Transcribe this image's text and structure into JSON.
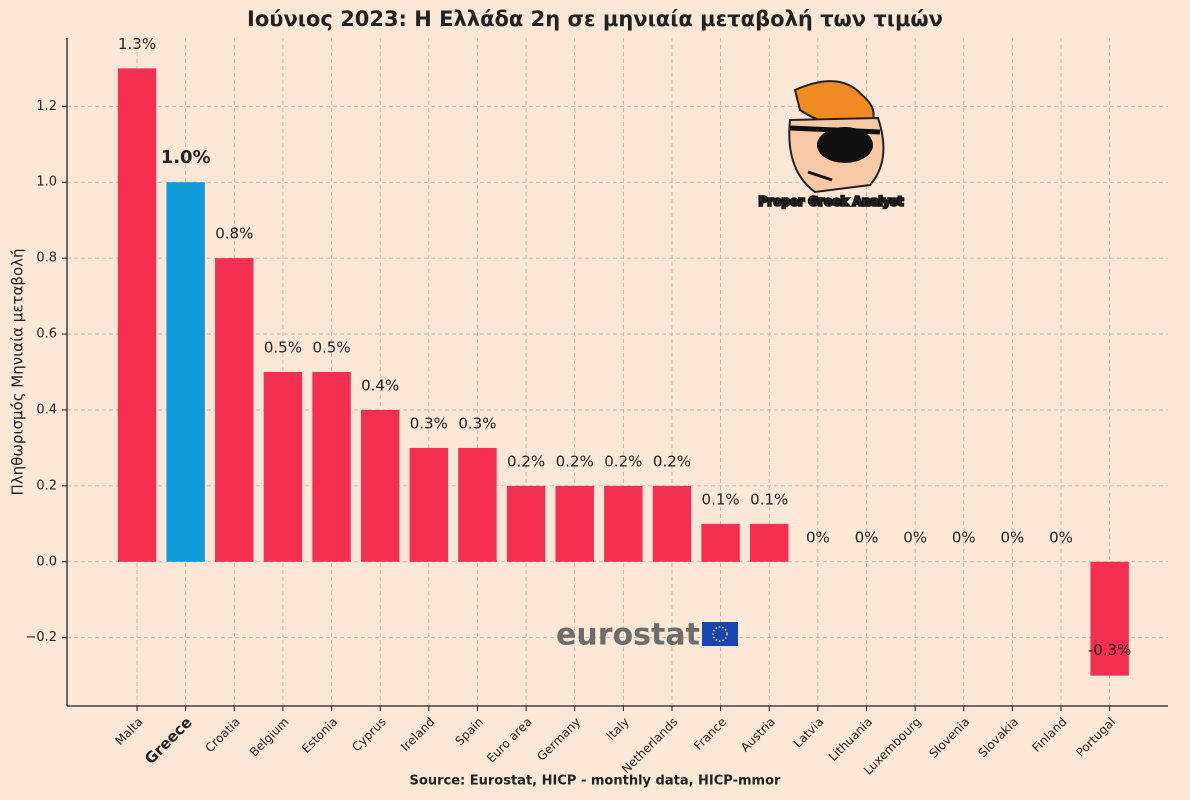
{
  "chart_data": {
    "type": "bar",
    "title": "Ιούνιος 2023: Η Ελλάδα 2η σε μηνιαία μεταβολή των τιμών",
    "y_label": "Πληθωρισμός Μηνιαία μεταβολή",
    "source": "Source: Eurostat, HICP - monthly data, HICP-mmor",
    "annotations": [
      "Proper Greek Analyst",
      "eurostat"
    ],
    "categories": [
      "Malta",
      "Greece",
      "Croatia",
      "Belgium",
      "Estonia",
      "Cyprus",
      "Ireland",
      "Spain",
      "Euro area",
      "Germany",
      "Italy",
      "Netherlands",
      "France",
      "Austria",
      "Latvia",
      "Lithuania",
      "Luxembourg",
      "Slovenia",
      "Slovakia",
      "Finland",
      "Portugal"
    ],
    "values": [
      1.3,
      1.0,
      0.8,
      0.5,
      0.5,
      0.4,
      0.3,
      0.3,
      0.2,
      0.2,
      0.2,
      0.2,
      0.1,
      0.1,
      0,
      0,
      0,
      0,
      0,
      0,
      -0.3
    ],
    "value_labels": [
      "1.3%",
      "1.0%",
      "0.8%",
      "0.5%",
      "0.5%",
      "0.4%",
      "0.3%",
      "0.3%",
      "0.2%",
      "0.2%",
      "0.2%",
      "0.2%",
      "0.1%",
      "0.1%",
      "0%",
      "0%",
      "0%",
      "0%",
      "0%",
      "0%",
      "-0.3%"
    ],
    "color": "#f42f51",
    "colors": [
      "#f42f51",
      "#0e9bd8",
      "#f42f51",
      "#f42f51",
      "#f42f51",
      "#f42f51",
      "#f42f51",
      "#f42f51",
      "#f42f51",
      "#f42f51",
      "#f42f51",
      "#f42f51",
      "#f42f51",
      "#f42f51",
      "#f42f51",
      "#f42f51",
      "#f42f51",
      "#f42f51",
      "#f42f51",
      "#f42f51",
      "#f42f51"
    ],
    "ylim": [
      -0.38,
      1.38
    ],
    "yticks": [
      {
        "value": -0.2,
        "label": "−0.2"
      },
      {
        "value": 0,
        "label": "0.0"
      },
      0.2,
      0.4,
      0.6,
      0.8,
      {
        "value": 1,
        "label": "1.0"
      },
      1.2
    ],
    "grid": true
  }
}
